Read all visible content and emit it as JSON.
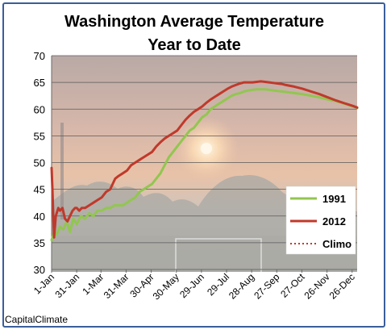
{
  "chart_data": {
    "type": "line",
    "title_line1": "Washington Average Temperature",
    "title_line2": "Year to Date",
    "ylim": [
      30,
      70
    ],
    "yticks": [
      30,
      35,
      40,
      45,
      50,
      55,
      60,
      65,
      70
    ],
    "xlim": [
      0,
      365
    ],
    "xticks": [
      {
        "day": 0,
        "label": "1-Jan"
      },
      {
        "day": 30,
        "label": "31-Jan"
      },
      {
        "day": 59,
        "label": "1-Mar"
      },
      {
        "day": 89,
        "label": "31-Mar"
      },
      {
        "day": 119,
        "label": "30-Apr"
      },
      {
        "day": 149,
        "label": "30-May"
      },
      {
        "day": 179,
        "label": "29-Jun"
      },
      {
        "day": 209,
        "label": "29-Jul"
      },
      {
        "day": 239,
        "label": "28-Aug"
      },
      {
        "day": 269,
        "label": "27-Sep"
      },
      {
        "day": 299,
        "label": "27-Oct"
      },
      {
        "day": 329,
        "label": "26-Nov"
      },
      {
        "day": 359,
        "label": "26-Dec"
      }
    ],
    "grid": true,
    "legend_position": "right",
    "series": [
      {
        "name": "1991",
        "color": "#92c650",
        "style": "solid",
        "points": [
          [
            0,
            35.5
          ],
          [
            3,
            37
          ],
          [
            6,
            36.5
          ],
          [
            10,
            38
          ],
          [
            14,
            37.5
          ],
          [
            18,
            39
          ],
          [
            22,
            37
          ],
          [
            26,
            39.5
          ],
          [
            30,
            38.5
          ],
          [
            35,
            40
          ],
          [
            40,
            39.5
          ],
          [
            45,
            40.5
          ],
          [
            50,
            40
          ],
          [
            55,
            41
          ],
          [
            60,
            41
          ],
          [
            65,
            41.5
          ],
          [
            70,
            41.5
          ],
          [
            75,
            42
          ],
          [
            80,
            42
          ],
          [
            85,
            42
          ],
          [
            90,
            42.5
          ],
          [
            95,
            43
          ],
          [
            100,
            43.5
          ],
          [
            105,
            44.5
          ],
          [
            110,
            45
          ],
          [
            115,
            45.5
          ],
          [
            120,
            46
          ],
          [
            125,
            47
          ],
          [
            130,
            48
          ],
          [
            135,
            49.5
          ],
          [
            140,
            51
          ],
          [
            145,
            52
          ],
          [
            150,
            53
          ],
          [
            155,
            54
          ],
          [
            160,
            55
          ],
          [
            165,
            56
          ],
          [
            170,
            56.5
          ],
          [
            175,
            57.5
          ],
          [
            180,
            58.5
          ],
          [
            185,
            59
          ],
          [
            190,
            60
          ],
          [
            195,
            60.5
          ],
          [
            200,
            61
          ],
          [
            205,
            61.5
          ],
          [
            210,
            62
          ],
          [
            215,
            62.5
          ],
          [
            220,
            62.8
          ],
          [
            225,
            63
          ],
          [
            230,
            63.3
          ],
          [
            235,
            63.5
          ],
          [
            240,
            63.6
          ],
          [
            245,
            63.7
          ],
          [
            250,
            63.7
          ],
          [
            255,
            63.7
          ],
          [
            260,
            63.6
          ],
          [
            265,
            63.5
          ],
          [
            270,
            63.4
          ],
          [
            280,
            63.2
          ],
          [
            290,
            63
          ],
          [
            300,
            62.8
          ],
          [
            310,
            62.5
          ],
          [
            320,
            62.2
          ],
          [
            330,
            61.8
          ],
          [
            340,
            61.5
          ],
          [
            350,
            61
          ],
          [
            360,
            60.5
          ],
          [
            365,
            60.2
          ]
        ]
      },
      {
        "name": "2012",
        "color": "#c0392b",
        "style": "solid",
        "points": [
          [
            0,
            49
          ],
          [
            1,
            45
          ],
          [
            2,
            40
          ],
          [
            3,
            36
          ],
          [
            5,
            40
          ],
          [
            8,
            41.5
          ],
          [
            10,
            41
          ],
          [
            13,
            41.5
          ],
          [
            16,
            39.5
          ],
          [
            19,
            39
          ],
          [
            22,
            40
          ],
          [
            25,
            41
          ],
          [
            28,
            41.5
          ],
          [
            30,
            41.5
          ],
          [
            33,
            41
          ],
          [
            36,
            41.5
          ],
          [
            40,
            41.5
          ],
          [
            45,
            42
          ],
          [
            50,
            42.5
          ],
          [
            55,
            43
          ],
          [
            60,
            43.5
          ],
          [
            65,
            44.5
          ],
          [
            70,
            45
          ],
          [
            73,
            46
          ],
          [
            76,
            47
          ],
          [
            80,
            47.5
          ],
          [
            85,
            48
          ],
          [
            90,
            48.5
          ],
          [
            95,
            49.5
          ],
          [
            100,
            50
          ],
          [
            105,
            50.5
          ],
          [
            110,
            51
          ],
          [
            115,
            51.5
          ],
          [
            120,
            52
          ],
          [
            125,
            53
          ],
          [
            130,
            53.8
          ],
          [
            135,
            54.5
          ],
          [
            140,
            55
          ],
          [
            145,
            55.5
          ],
          [
            150,
            56
          ],
          [
            155,
            57
          ],
          [
            160,
            58
          ],
          [
            165,
            58.8
          ],
          [
            170,
            59.5
          ],
          [
            175,
            60
          ],
          [
            180,
            60.5
          ],
          [
            185,
            61.2
          ],
          [
            190,
            61.8
          ],
          [
            195,
            62.3
          ],
          [
            200,
            62.8
          ],
          [
            205,
            63.3
          ],
          [
            210,
            63.8
          ],
          [
            215,
            64.2
          ],
          [
            220,
            64.5
          ],
          [
            225,
            64.8
          ],
          [
            230,
            65
          ],
          [
            235,
            65
          ],
          [
            240,
            65
          ],
          [
            245,
            65.1
          ],
          [
            250,
            65.2
          ],
          [
            255,
            65.1
          ],
          [
            260,
            65
          ],
          [
            265,
            64.9
          ],
          [
            270,
            64.8
          ],
          [
            275,
            64.7
          ],
          [
            280,
            64.5
          ],
          [
            290,
            64.2
          ],
          [
            300,
            63.8
          ],
          [
            310,
            63.3
          ],
          [
            320,
            62.8
          ],
          [
            330,
            62.2
          ],
          [
            340,
            61.6
          ],
          [
            350,
            61.1
          ],
          [
            360,
            60.6
          ],
          [
            365,
            60.3
          ]
        ]
      },
      {
        "name": "Climo",
        "color": "#c0392b",
        "style": "dotted",
        "points": []
      }
    ]
  },
  "credit": "CapitalClimate"
}
